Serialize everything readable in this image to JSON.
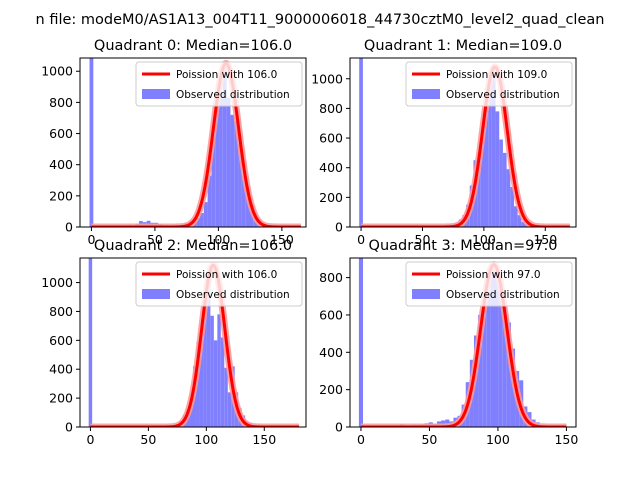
{
  "suptitle": "n file: modeM0/AS1A13_004T11_9000006018_44730cztM0_level2_quad_clean",
  "colors": {
    "hist": "#8080ff",
    "line": "#ff0000",
    "lineGlow": "#ff9999"
  },
  "chart_data": [
    {
      "type": "bar",
      "title": "Quadrant 0: Median=106.0",
      "xlim": [
        -9,
        169
      ],
      "ylim": [
        0,
        1085
      ],
      "xticks": [
        0,
        50,
        100,
        150
      ],
      "yticks": [
        0,
        200,
        400,
        600,
        800,
        1000
      ],
      "legend": {
        "placement": "top-right",
        "entries": [
          "Poission with 106.0",
          "Observed distribution"
        ]
      },
      "spike": {
        "x": 0,
        "value": 1085
      },
      "hist": {
        "x": [
          30,
          33,
          36,
          39,
          42,
          45,
          48,
          51,
          54,
          57,
          60,
          63,
          66,
          69,
          72,
          75,
          78,
          81,
          84,
          87,
          90,
          93,
          96,
          99,
          102,
          105,
          108,
          111,
          114,
          117,
          120,
          123,
          126,
          129,
          132,
          135,
          138,
          141,
          144,
          147
        ],
        "values": [
          12,
          8,
          22,
          38,
          31,
          40,
          27,
          27,
          20,
          12,
          8,
          10,
          14,
          12,
          20,
          28,
          40,
          52,
          58,
          90,
          160,
          330,
          590,
          810,
          860,
          1020,
          830,
          720,
          680,
          540,
          330,
          260,
          150,
          90,
          40,
          25,
          12,
          8,
          4,
          2
        ]
      },
      "poisson": {
        "mean": 106.0,
        "peak": 1050,
        "sigma": 9.9,
        "range": [
          0,
          165
        ]
      }
    },
    {
      "type": "bar",
      "title": "Quadrant 1: Median=109.0",
      "xlim": [
        -9,
        175
      ],
      "ylim": [
        0,
        1140
      ],
      "xticks": [
        0,
        50,
        100,
        150
      ],
      "yticks": [
        0,
        200,
        400,
        600,
        800,
        1000
      ],
      "legend": {
        "placement": "top-right",
        "entries": [
          "Poission with 109.0",
          "Observed distribution"
        ]
      },
      "spike": {
        "x": 0,
        "value": 1140
      },
      "hist": {
        "x": [
          54,
          57,
          60,
          63,
          66,
          69,
          72,
          75,
          78,
          81,
          84,
          87,
          90,
          93,
          96,
          99,
          102,
          105,
          108,
          111,
          114,
          117,
          120,
          123,
          126,
          129,
          132,
          135,
          138,
          141
        ],
        "values": [
          3,
          4,
          5,
          8,
          10,
          14,
          18,
          18,
          30,
          50,
          80,
          150,
          280,
          450,
          500,
          600,
          860,
          940,
          1090,
          780,
          590,
          500,
          390,
          270,
          140,
          80,
          35,
          20,
          10,
          5
        ]
      },
      "poisson": {
        "mean": 109.0,
        "peak": 1080,
        "sigma": 10.0,
        "range": [
          0,
          170
        ]
      }
    },
    {
      "type": "bar",
      "title": "Quadrant 2: Median=106.0",
      "xlim": [
        -9,
        186
      ],
      "ylim": [
        0,
        1170
      ],
      "xticks": [
        0,
        50,
        100,
        150
      ],
      "yticks": [
        0,
        200,
        400,
        600,
        800,
        1000
      ],
      "legend": {
        "placement": "top-right",
        "entries": [
          "Poission with 106.0",
          "Observed distribution"
        ]
      },
      "spike": {
        "x": 0,
        "value": 1170
      },
      "hist": {
        "x": [
          69,
          72,
          75,
          78,
          81,
          84,
          87,
          90,
          93,
          96,
          99,
          102,
          105,
          108,
          111,
          114,
          117,
          120,
          123,
          126,
          129,
          132,
          135,
          138,
          141,
          144,
          147
        ],
        "values": [
          5,
          15,
          20,
          40,
          80,
          120,
          200,
          420,
          590,
          640,
          820,
          1010,
          770,
          600,
          780,
          620,
          410,
          240,
          420,
          240,
          130,
          80,
          40,
          30,
          15,
          8,
          3
        ]
      },
      "poisson": {
        "mean": 106.0,
        "peak": 1120,
        "sigma": 10.0,
        "range": [
          0,
          180
        ]
      }
    },
    {
      "type": "bar",
      "title": "Quadrant 3: Median=97.0",
      "xlim": [
        -8,
        157
      ],
      "ylim": [
        0,
        905
      ],
      "xticks": [
        0,
        50,
        100,
        150
      ],
      "yticks": [
        0,
        200,
        400,
        600,
        800
      ],
      "legend": {
        "placement": "top-right",
        "entries": [
          "Poission with 97.0",
          "Observed distribution"
        ]
      },
      "spike": {
        "x": 0,
        "value": 905
      },
      "hist": {
        "x": [
          30,
          33,
          36,
          39,
          42,
          45,
          48,
          51,
          54,
          57,
          60,
          63,
          66,
          69,
          72,
          75,
          78,
          81,
          84,
          87,
          90,
          93,
          96,
          99,
          102,
          105,
          108,
          111,
          114,
          117,
          120,
          123,
          126,
          129,
          132,
          135
        ],
        "values": [
          15,
          5,
          8,
          12,
          10,
          15,
          20,
          25,
          18,
          30,
          35,
          40,
          30,
          50,
          60,
          120,
          240,
          360,
          490,
          600,
          700,
          730,
          860,
          830,
          770,
          680,
          560,
          420,
          300,
          250,
          110,
          80,
          40,
          25,
          10,
          5
        ]
      },
      "poisson": {
        "mean": 97.0,
        "peak": 870,
        "sigma": 9.6,
        "range": [
          0,
          150
        ]
      }
    }
  ]
}
